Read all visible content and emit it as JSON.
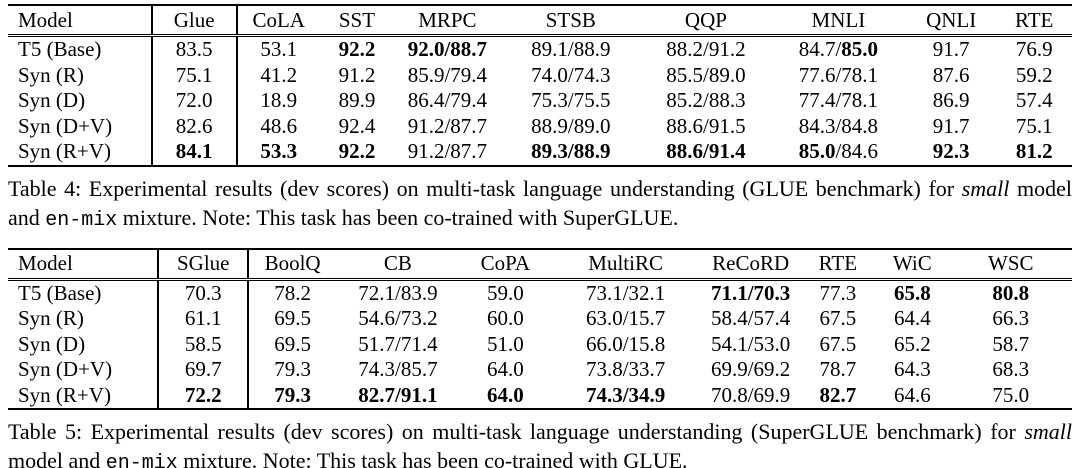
{
  "tables": [
    {
      "title": "glue-results",
      "columns": [
        "Model",
        "Glue",
        "CoLA",
        "SST",
        "MRPC",
        "STSB",
        "QQP",
        "MNLI",
        "QNLI",
        "RTE"
      ],
      "rows": [
        [
          "T5 (Base)",
          "83.5",
          "53.1",
          "**92.2**",
          "**92.0/88.7**",
          "89.1/88.9",
          "88.2/91.2",
          "84.7/**85.0**",
          "91.7",
          "76.9"
        ],
        [
          "Syn (R)",
          "75.1",
          "41.2",
          "91.2",
          "85.9/79.4",
          "74.0/74.3",
          "85.5/89.0",
          "77.6/78.1",
          "87.6",
          "59.2"
        ],
        [
          "Syn (D)",
          "72.0",
          "18.9",
          "89.9",
          "86.4/79.4",
          "75.3/75.5",
          "85.2/88.3",
          "77.4/78.1",
          "86.9",
          "57.4"
        ],
        [
          "Syn (D+V)",
          "82.6",
          "48.6",
          "92.4",
          "91.2/87.7",
          "88.9/89.0",
          "88.6/91.5",
          "84.3/84.8",
          "91.7",
          "75.1"
        ],
        [
          "Syn (R+V)",
          "**84.1**",
          "**53.3**",
          "**92.2**",
          "91.2/87.7",
          "**89.3/88.9**",
          "**88.6/91.4**",
          "**85.0**/84.6",
          "**92.3**",
          "**81.2**"
        ]
      ],
      "caption": "Table 4: Experimental results (dev scores) on multi-task language understanding (GLUE benchmark) for *small* model and `en-mix` mixture. Note: This task has been co-trained with SuperGLUE."
    },
    {
      "title": "superglue-results",
      "columns": [
        "Model",
        "SGlue",
        "BoolQ",
        "CB",
        "CoPA",
        "MultiRC",
        "ReCoRD",
        "RTE",
        "WiC",
        "WSC"
      ],
      "rows": [
        [
          "T5 (Base)",
          "70.3",
          "78.2",
          "72.1/83.9",
          "59.0",
          "73.1/32.1",
          "**71.1/70.3**",
          "77.3",
          "**65.8**",
          "**80.8**"
        ],
        [
          "Syn (R)",
          "61.1",
          "69.5",
          "54.6/73.2",
          "60.0",
          "63.0/15.7",
          "58.4/57.4",
          "67.5",
          "64.4",
          "66.3"
        ],
        [
          "Syn (D)",
          "58.5",
          "69.5",
          "51.7/71.4",
          "51.0",
          "66.0/15.8",
          "54.1/53.0",
          "67.5",
          "65.2",
          "58.7"
        ],
        [
          "Syn (D+V)",
          "69.7",
          "79.3",
          "74.3/85.7",
          "64.0",
          "73.8/33.7",
          "69.9/69.2",
          "78.7",
          "64.3",
          "68.3"
        ],
        [
          "Syn (R+V)",
          "**72.2**",
          "**79.3**",
          "**82.7/91.1**",
          "**64.0**",
          "**74.3/34.9**",
          "70.8/69.9",
          "**82.7**",
          "64.6",
          "75.0"
        ]
      ],
      "caption": "Table 5: Experimental results (dev scores) on multi-task language understanding (SuperGLUE benchmark) for *small* model and `en-mix` mixture. Note: This task has been co-trained with GLUE."
    }
  ]
}
